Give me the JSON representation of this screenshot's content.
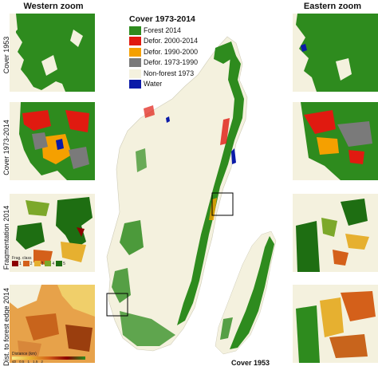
{
  "titles": {
    "western_zoom": "Western zoom",
    "eastern_zoom": "Eastern zoom",
    "bottom_map_caption": "Cover 1953"
  },
  "row_labels": [
    "Cover 1953",
    "Cover 1973-2014",
    "Fragmentation 2014",
    "Dist. to forest edge 2014"
  ],
  "legend": {
    "title": "Cover 1973-2014",
    "items": [
      {
        "label": "Forest 2014",
        "color": "#2e8b1e"
      },
      {
        "label": "Defor. 2000-2014",
        "color": "#e01a10"
      },
      {
        "label": "Defor. 1990-2000",
        "color": "#f5a000"
      },
      {
        "label": "Defor. 1973-1990",
        "color": "#7a7a7a"
      },
      {
        "label": "Non-forest 1973",
        "color": "#f4f1de"
      },
      {
        "label": "Water",
        "color": "#0a1aa8"
      }
    ]
  },
  "frag_legend": {
    "title": "Frag. class",
    "classes": [
      "1",
      "2",
      "3",
      "4",
      "5"
    ],
    "colors": [
      "#8b0000",
      "#d4601a",
      "#e6b030",
      "#7ca82a",
      "#1e6e12"
    ]
  },
  "distance_legend": {
    "title": "Distance (km)",
    "ticks": [
      "≤0",
      "0.5",
      "1",
      "1.5",
      "2"
    ]
  },
  "colors": {
    "forest": "#2e8b1e",
    "nonforest": "#f4f1de",
    "water": "#0a1aa8",
    "defor_2000": "#e01a10",
    "defor_1990": "#f5a000",
    "defor_1973": "#7a7a7a"
  }
}
